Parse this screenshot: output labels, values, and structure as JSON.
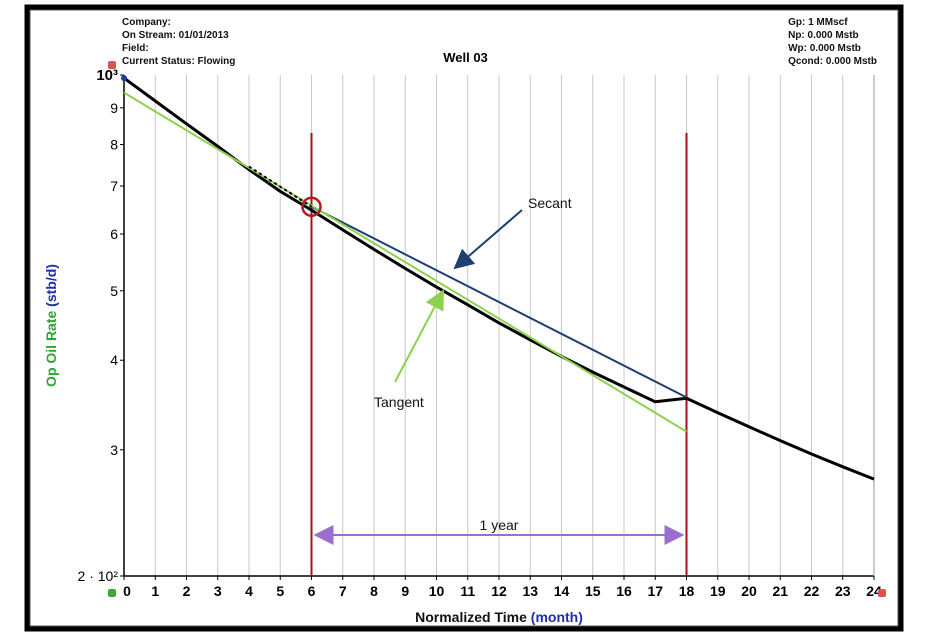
{
  "header_left": {
    "company": "Company:",
    "on_stream": "On Stream: 01/01/2013",
    "field": "Field:",
    "status": "Current Status: Flowing"
  },
  "header_right": {
    "gp": "Gp: 1 MMscf",
    "np": "Np: 0.000 Mstb",
    "wp": "Wp: 0.000 Mstb",
    "qcond": "Qcond: 0.000 Mstb"
  },
  "chart_data": {
    "type": "line",
    "title": "Well 03",
    "xlabel": "Normalized Time",
    "xlabel_unit": "(month)",
    "ylabel": "Op Oil Rate",
    "ylabel_unit": "(stb/d)",
    "xlim": [
      0,
      24
    ],
    "ylim": [
      200,
      1000
    ],
    "yscale": "log",
    "grid": "vertical",
    "x_ticks": [
      0,
      1,
      2,
      3,
      4,
      5,
      6,
      7,
      8,
      9,
      10,
      11,
      12,
      13,
      14,
      15,
      16,
      17,
      18,
      19,
      20,
      21,
      22,
      23,
      24
    ],
    "x_tick_labels": [
      "0",
      "1",
      "2",
      "3",
      "4",
      "5",
      "6",
      "7",
      "8",
      "9",
      "10",
      "11",
      "12",
      "13",
      "14",
      "15",
      "16",
      "17",
      "18",
      "19",
      "20",
      "21",
      "22",
      "23",
      "24"
    ],
    "y_ticks": [
      1000,
      900,
      800,
      700,
      600,
      500,
      400,
      300,
      200
    ],
    "y_tick_labels": [
      "10³",
      "9",
      "8",
      "7",
      "6",
      "5",
      "4",
      "3",
      "2 · 10²"
    ],
    "series": [
      {
        "color": "#000000",
        "x": [
          0,
          1,
          2,
          3,
          4,
          5,
          6,
          7,
          8,
          9,
          10,
          11,
          12,
          13,
          14,
          15,
          16,
          17,
          18,
          19,
          20,
          21,
          22,
          23,
          24
        ],
        "values": [
          990,
          920,
          855,
          795,
          738,
          688,
          648,
          608,
          571,
          537,
          506,
          478,
          451,
          427,
          405,
          385,
          367,
          350,
          354,
          338,
          323,
          309,
          296,
          284,
          273
        ]
      },
      {
        "name": "Secant",
        "color": "#1f3f73",
        "x": [
          6,
          18
        ],
        "values": [
          655,
          355
        ]
      },
      {
        "name": "Tangent",
        "color": "#8fd14f",
        "x": [
          0,
          18
        ],
        "values": [
          945,
          318
        ]
      },
      {
        "color": "#000000",
        "dashed": true,
        "x": [
          4,
          6
        ],
        "values": [
          745,
          655
        ]
      }
    ],
    "vertical_lines": [
      6,
      18
    ],
    "marker_circle": {
      "x": 6,
      "y": 655
    },
    "annotations": {
      "secant": "Secant",
      "tangent": "Tangent",
      "span": "1 year"
    },
    "span_arrow": {
      "x_from": 6,
      "x_to": 18,
      "y": 222
    }
  }
}
